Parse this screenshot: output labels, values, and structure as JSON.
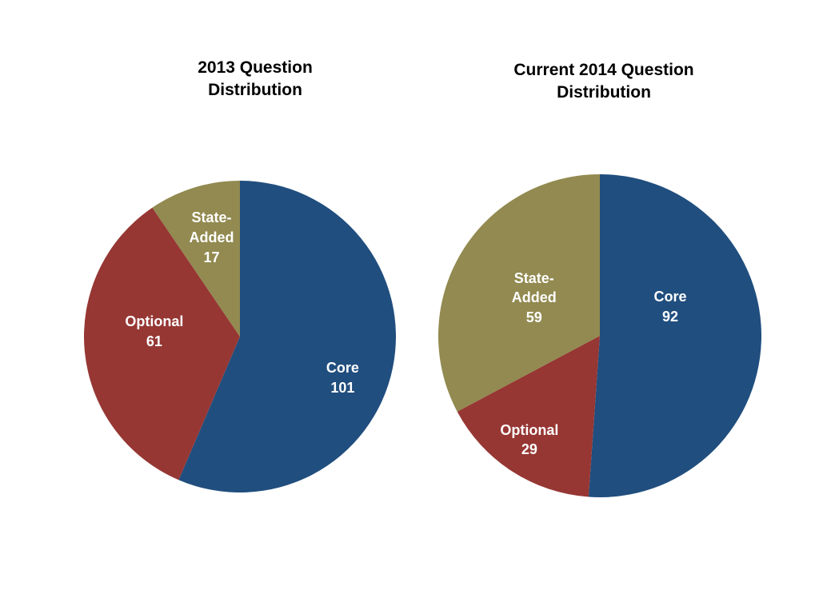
{
  "page": {
    "background_color": "#FFFFFF"
  },
  "chart_data": [
    {
      "type": "pie",
      "title": "2013 Question Distribution",
      "total": 179,
      "start_angle_deg": 0,
      "direction": "clockwise",
      "label_color": "#FFFFFF",
      "legend": "none",
      "slices": [
        {
          "name": "Core",
          "label_lines": [
            "Core"
          ],
          "value": 101,
          "color": "#204E7E",
          "label_angle_deg": 112,
          "label_r_frac": 0.71
        },
        {
          "name": "Optional",
          "label_lines": [
            "Optional"
          ],
          "value": 61,
          "color": "#963734",
          "label_angle_deg": 273,
          "label_r_frac": 0.55
        },
        {
          "name": "State-Added",
          "label_lines": [
            "State-",
            "Added"
          ],
          "value": 17,
          "color": "#928A50",
          "label_angle_deg": 344,
          "label_r_frac": 0.66
        }
      ]
    },
    {
      "type": "pie",
      "title": "Current 2014 Question Distribution",
      "total": 180,
      "start_angle_deg": 0,
      "direction": "clockwise",
      "label_color": "#FFFFFF",
      "legend": "none",
      "slices": [
        {
          "name": "Core",
          "label_lines": [
            "Core"
          ],
          "value": 92,
          "color": "#204E7E",
          "label_angle_deg": 68,
          "label_r_frac": 0.47
        },
        {
          "name": "Optional",
          "label_lines": [
            "Optional"
          ],
          "value": 29,
          "color": "#963734",
          "label_angle_deg": 214,
          "label_r_frac": 0.78
        },
        {
          "name": "State-Added",
          "label_lines": [
            "State-",
            "Added"
          ],
          "value": 59,
          "color": "#928A50",
          "label_angle_deg": 300,
          "label_r_frac": 0.47
        }
      ]
    }
  ]
}
